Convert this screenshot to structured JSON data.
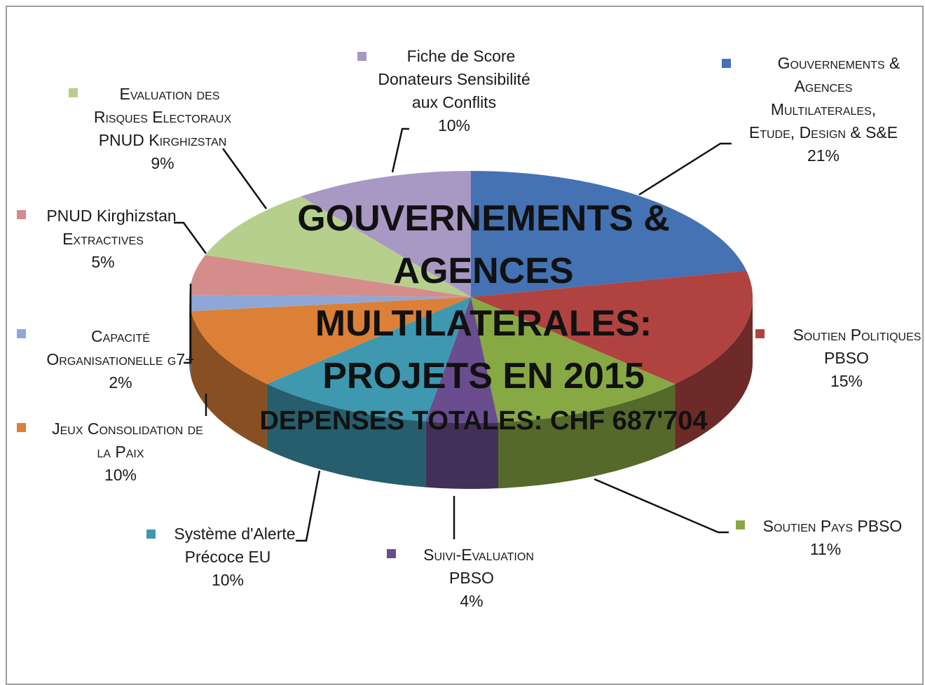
{
  "chart_data": {
    "type": "pie",
    "title": [
      "GOUVERNEMENTS &",
      "AGENCES",
      "MULTILATERALES:",
      "PROJETS EN 2015"
    ],
    "subtitle": "DEPENSES TOTALES: CHF 687'704",
    "slices": [
      {
        "label": "Gouvernements & Agences Multilaterales, Etude, Design & S&E",
        "value": 21,
        "pct_label": "21%",
        "color": "#4472b3"
      },
      {
        "label": "Soutien Politiques PBSO",
        "value": 15,
        "pct_label": "15%",
        "color": "#b04340"
      },
      {
        "label": "Soutien Pays PBSO",
        "value": 11,
        "pct_label": "11%",
        "color": "#87a944"
      },
      {
        "label": "Suivi-Evaluation PBSO",
        "value": 4,
        "pct_label": "4%",
        "color": "#6a4d8f"
      },
      {
        "label": "Système d'Alerte Précoce EU",
        "value": 10,
        "pct_label": "10%",
        "color": "#3d98b0"
      },
      {
        "label": "Jeux Consolidation de la Paix",
        "value": 10,
        "pct_label": "10%",
        "color": "#dc8037"
      },
      {
        "label": "Capacité Organisationelle g7+",
        "value": 2,
        "pct_label": "2%",
        "color": "#8ea7d6"
      },
      {
        "label": "PNUD Kirghizstan Extractives",
        "value": 5,
        "pct_label": "5%",
        "color": "#d58d8b"
      },
      {
        "label": "Evaluation des Risques Electoraux PNUD Kirghizstan",
        "value": 9,
        "pct_label": "9%",
        "color": "#b7cf8d"
      },
      {
        "label": "Fiche de Score Donateurs Sensibilité aux Conflits",
        "value": 10,
        "pct_label": "10%",
        "color": "#a898c4"
      }
    ]
  },
  "labels": {
    "s0": [
      "Gouvernements &",
      "Agences",
      "Multilaterales,",
      "Etude, Design & S&E"
    ],
    "s1": [
      "Soutien Politiques",
      "PBSO"
    ],
    "s2": [
      "Soutien Pays PBSO"
    ],
    "s3": [
      "Suivi-Evaluation",
      "PBSO"
    ],
    "s4": [
      "Système d'Alerte",
      "Précoce EU"
    ],
    "s5": [
      "Jeux Consolidation de",
      "la Paix"
    ],
    "s6": [
      "Capacité",
      "Organisationelle g7+"
    ],
    "s7": [
      "PNUD Kirghizstan",
      "Extractives"
    ],
    "s8": [
      "Evaluation des",
      "Risques Electoraux",
      "PNUD Kirghizstan"
    ],
    "s9": [
      "Fiche de Score",
      "Donateurs Sensibilité",
      "aux Conflits"
    ]
  }
}
